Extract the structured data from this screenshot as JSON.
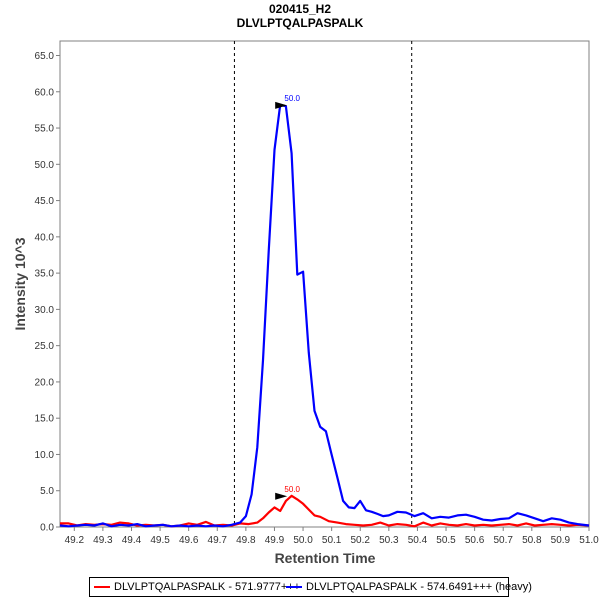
{
  "colors": {
    "light": "#ff0000",
    "heavy": "#0000ff",
    "axis": "#808080"
  },
  "chart_data": {
    "type": "line",
    "title": "020415_H2",
    "subtitle": "DLVLPTQALPASPALK",
    "xlabel": "Retention Time",
    "ylabel": "Intensity 10^3",
    "xlim": [
      49.15,
      51.0
    ],
    "ylim": [
      0,
      67
    ],
    "x_ticks": [
      "49.2",
      "49.3",
      "49.4",
      "49.5",
      "49.6",
      "49.7",
      "49.8",
      "49.9",
      "50.0",
      "50.1",
      "50.2",
      "50.3",
      "50.4",
      "50.5",
      "50.6",
      "50.7",
      "50.8",
      "50.9",
      "51.0"
    ],
    "y_ticks": [
      "0.0",
      "5.0",
      "10.0",
      "15.0",
      "20.0",
      "25.0",
      "30.0",
      "35.0",
      "40.0",
      "45.0",
      "50.0",
      "55.0",
      "60.0",
      "65.0"
    ],
    "integration_bounds": [
      49.76,
      50.38
    ],
    "grid": false,
    "legend_position": "bottom",
    "series": [
      {
        "name": "DLVLPTQALPASPALK - 571.9777+++",
        "color": "#ff0000",
        "peak_label": "50.0",
        "peak": {
          "x": 49.955,
          "y": 4.3
        },
        "x": [
          49.15,
          49.18,
          49.21,
          49.24,
          49.27,
          49.3,
          49.33,
          49.36,
          49.39,
          49.42,
          49.45,
          49.48,
          49.51,
          49.54,
          49.57,
          49.6,
          49.63,
          49.66,
          49.69,
          49.72,
          49.75,
          49.78,
          49.81,
          49.84,
          49.86,
          49.88,
          49.9,
          49.92,
          49.94,
          49.96,
          49.98,
          50.0,
          50.02,
          50.04,
          50.06,
          50.09,
          50.12,
          50.15,
          50.18,
          50.21,
          50.24,
          50.27,
          50.3,
          50.33,
          50.36,
          50.39,
          50.42,
          50.45,
          50.48,
          50.51,
          50.54,
          50.57,
          50.6,
          50.63,
          50.66,
          50.69,
          50.72,
          50.75,
          50.78,
          50.81,
          50.84,
          50.87,
          50.9,
          50.93,
          50.96,
          51.0
        ],
        "y": [
          0.5,
          0.5,
          0.2,
          0.4,
          0.3,
          0.4,
          0.3,
          0.6,
          0.5,
          0.2,
          0.3,
          0.2,
          0.3,
          0.1,
          0.2,
          0.5,
          0.3,
          0.7,
          0.2,
          0.3,
          0.2,
          0.5,
          0.4,
          0.6,
          1.2,
          2.0,
          2.7,
          2.2,
          3.6,
          4.3,
          3.8,
          3.2,
          2.4,
          1.6,
          1.4,
          0.8,
          0.6,
          0.4,
          0.3,
          0.2,
          0.3,
          0.6,
          0.2,
          0.4,
          0.3,
          0.1,
          0.6,
          0.2,
          0.5,
          0.3,
          0.2,
          0.4,
          0.2,
          0.3,
          0.2,
          0.3,
          0.4,
          0.2,
          0.5,
          0.2,
          0.3,
          0.4,
          0.3,
          0.2,
          0.3,
          0.2
        ]
      },
      {
        "name": "DLVLPTQALPASPALK - 574.6491+++ (heavy)",
        "color": "#0000ff",
        "peak_label": "50.0",
        "peak": {
          "x": 49.955,
          "y": 58.2
        },
        "x": [
          49.15,
          49.18,
          49.21,
          49.24,
          49.27,
          49.3,
          49.33,
          49.36,
          49.39,
          49.42,
          49.45,
          49.48,
          49.51,
          49.54,
          49.57,
          49.6,
          49.63,
          49.66,
          49.69,
          49.72,
          49.75,
          49.78,
          49.8,
          49.82,
          49.84,
          49.86,
          49.88,
          49.9,
          49.92,
          49.94,
          49.96,
          49.98,
          50.0,
          50.02,
          50.04,
          50.06,
          50.08,
          50.1,
          50.12,
          50.14,
          50.16,
          50.18,
          50.2,
          50.22,
          50.24,
          50.26,
          50.28,
          50.3,
          50.33,
          50.36,
          50.39,
          50.42,
          50.45,
          50.48,
          50.51,
          50.54,
          50.57,
          50.6,
          50.63,
          50.66,
          50.69,
          50.72,
          50.75,
          50.78,
          50.81,
          50.84,
          50.87,
          50.9,
          50.93,
          50.96,
          51.0
        ],
        "y": [
          0.2,
          0.1,
          0.2,
          0.3,
          0.2,
          0.5,
          0.1,
          0.3,
          0.2,
          0.4,
          0.1,
          0.2,
          0.3,
          0.1,
          0.2,
          0.1,
          0.2,
          0.1,
          0.2,
          0.1,
          0.3,
          0.6,
          1.5,
          4.5,
          11.0,
          23.0,
          38.0,
          52.0,
          58.2,
          58.0,
          51.5,
          34.8,
          35.2,
          24.0,
          16.0,
          13.8,
          13.2,
          10.0,
          6.8,
          3.6,
          2.7,
          2.6,
          3.6,
          2.3,
          2.1,
          1.8,
          1.5,
          1.6,
          2.1,
          2.0,
          1.5,
          1.9,
          1.2,
          1.4,
          1.3,
          1.6,
          1.7,
          1.4,
          1.0,
          0.9,
          1.1,
          1.2,
          1.9,
          1.6,
          1.2,
          0.8,
          1.2,
          1.0,
          0.6,
          0.4,
          0.2
        ]
      }
    ]
  }
}
